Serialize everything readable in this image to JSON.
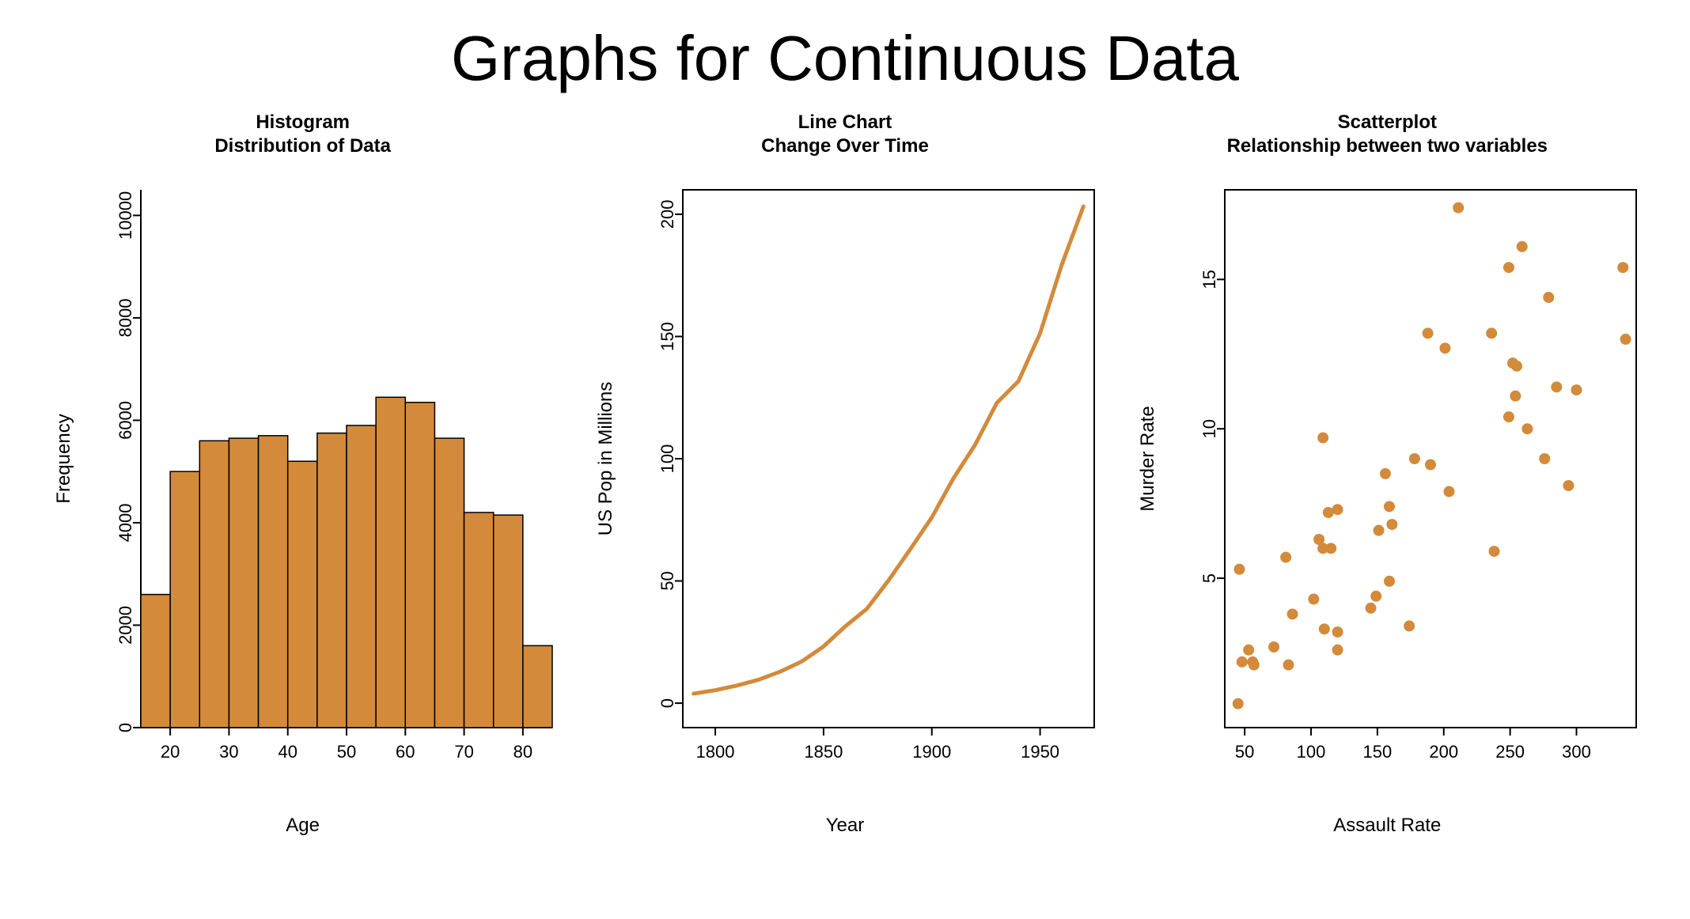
{
  "page_title": "Graphs for Continuous Data",
  "primary_color": "#d38a3a",
  "bar_border_color": "#000000",
  "line_color": "#d38a3a",
  "point_color": "#d38a3a",
  "axis_color": "#000000",
  "tick_font_size": 22,
  "axis_label_font_size": 24,
  "title_font_size": 24,
  "histogram": {
    "title": "Histogram\nDistribution of Data",
    "xlabel": "Age",
    "ylabel": "Frequency",
    "xlim": [
      15,
      85
    ],
    "ylim": [
      0,
      10500
    ],
    "xticks": [
      20,
      30,
      40,
      50,
      60,
      70,
      80
    ],
    "yticks": [
      0,
      2000,
      4000,
      6000,
      8000,
      10000
    ],
    "bin_edges": [
      15,
      20,
      25,
      30,
      35,
      40,
      45,
      50,
      55,
      60,
      65,
      70,
      75,
      80,
      85
    ],
    "counts": [
      2600,
      5000,
      5600,
      5650,
      5700,
      5200,
      5750,
      5900,
      6450,
      6350,
      5650,
      4200,
      4150,
      1600
    ]
  },
  "linechart": {
    "title": "Line Chart\nChange Over Time",
    "xlabel": "Year",
    "ylabel": "US Pop in Millions",
    "xlim": [
      1785,
      1975
    ],
    "ylim": [
      -10,
      210
    ],
    "xticks": [
      1800,
      1850,
      1900,
      1950
    ],
    "yticks": [
      0,
      50,
      100,
      150,
      200
    ],
    "line_width": 5,
    "x": [
      1790,
      1800,
      1810,
      1820,
      1830,
      1840,
      1850,
      1860,
      1870,
      1880,
      1890,
      1900,
      1910,
      1920,
      1930,
      1940,
      1950,
      1960,
      1970
    ],
    "y": [
      3.9,
      5.3,
      7.2,
      9.6,
      12.9,
      17.1,
      23.2,
      31.4,
      38.6,
      50.2,
      62.9,
      76.0,
      92.0,
      105.7,
      122.8,
      131.7,
      151.3,
      179.3,
      203.2
    ]
  },
  "scatter": {
    "title": "Scatterplot\nRelationship between two variables",
    "xlabel": "Assault Rate",
    "ylabel": "Murder Rate",
    "xlim": [
      35,
      345
    ],
    "ylim": [
      0,
      18
    ],
    "xticks": [
      50,
      100,
      150,
      200,
      250,
      300
    ],
    "yticks": [
      5,
      10,
      15
    ],
    "point_radius": 7,
    "x": [
      236,
      263,
      294,
      190,
      276,
      204,
      110,
      238,
      335,
      211,
      46,
      120,
      249,
      113,
      56,
      115,
      109,
      249,
      83,
      300,
      149,
      255,
      72,
      259,
      178,
      109,
      102,
      252,
      57,
      159,
      285,
      254,
      337,
      45,
      120,
      151,
      159,
      106,
      174,
      279,
      86,
      188,
      201,
      120,
      48,
      156,
      145,
      81,
      53,
      161
    ],
    "y": [
      13.2,
      10.0,
      8.1,
      8.8,
      9.0,
      7.9,
      3.3,
      5.9,
      15.4,
      17.4,
      5.3,
      2.6,
      10.4,
      7.2,
      2.2,
      6.0,
      9.7,
      15.4,
      2.1,
      11.3,
      4.4,
      12.1,
      2.7,
      16.1,
      9.0,
      6.0,
      4.3,
      12.2,
      2.1,
      7.4,
      11.4,
      11.1,
      13.0,
      0.8,
      7.3,
      6.6,
      4.9,
      6.3,
      3.4,
      14.4,
      3.8,
      13.2,
      12.7,
      3.2,
      2.2,
      8.5,
      4.0,
      5.7,
      2.6,
      6.8
    ]
  }
}
